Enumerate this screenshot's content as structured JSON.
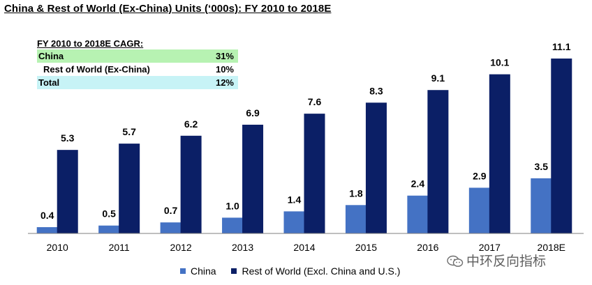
{
  "title": "China & Rest of World (Ex-China) Units (‘000s): FY 2010 to 2018E",
  "cagr_table": {
    "heading": "FY 2010 to 2018E CAGR:",
    "rows": [
      {
        "label": "China",
        "value": "31%"
      },
      {
        "label": "Rest of World (Ex-China)",
        "value": "10%"
      },
      {
        "label": "Total",
        "value": "12%"
      }
    ]
  },
  "watermark": "中环反向指标",
  "chart_data": {
    "type": "bar",
    "title": "China & Rest of World (Ex-China) Units (‘000s): FY 2010 to 2018E",
    "categories": [
      "2010",
      "2011",
      "2012",
      "2013",
      "2014",
      "2015",
      "2016",
      "2017",
      "2018E"
    ],
    "series": [
      {
        "name": "China",
        "color": "#4472c4",
        "values": [
          0.4,
          0.5,
          0.7,
          1.0,
          1.4,
          1.8,
          2.4,
          2.9,
          3.5
        ],
        "labels": [
          "0.4",
          "0.5",
          "0.7",
          "1.0",
          "1.4",
          "1.8",
          "2.4",
          "2.9",
          "3.5"
        ]
      },
      {
        "name": "Rest of World (Excl. China and U.S.)",
        "color": "#0b1f66",
        "values": [
          5.3,
          5.7,
          6.2,
          6.9,
          7.6,
          8.3,
          9.1,
          10.1,
          11.1
        ],
        "labels": [
          "5.3",
          "5.7",
          "6.2",
          "6.9",
          "7.6",
          "8.3",
          "9.1",
          "10.1",
          "11.1"
        ]
      }
    ],
    "ylim": [
      0,
      11.1
    ],
    "grid": false,
    "legend_position": "bottom"
  }
}
